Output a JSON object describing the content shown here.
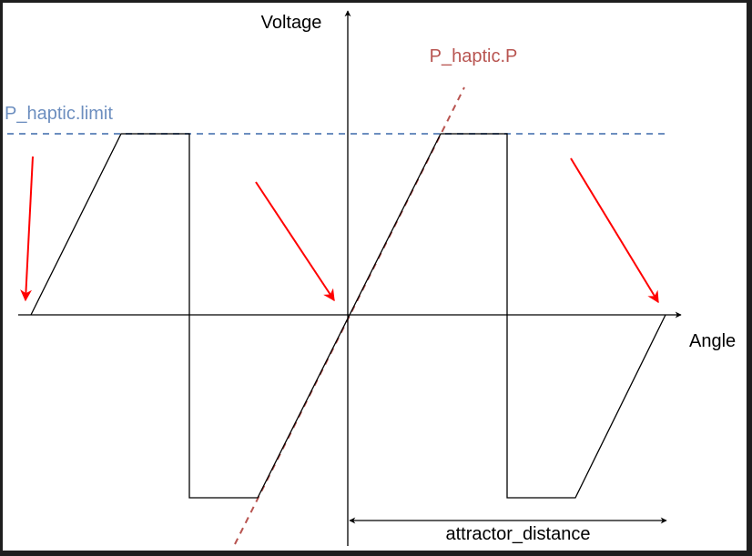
{
  "labels": {
    "y_axis": "Voltage",
    "x_axis": "Angle",
    "limit": "P_haptic.limit",
    "slope": "P_haptic.P",
    "distance": "attractor_distance"
  },
  "colors": {
    "background": "#ffffff",
    "frame": "#1e1e1e",
    "axis": "#000000",
    "signal": "#000000",
    "limit_line": "#6c8ebf",
    "slope_line": "#b85450",
    "arrow": "#ff0000"
  },
  "icons": {
    "annotation_arrows": [
      "red-arrow-icon",
      "red-arrow-icon",
      "red-arrow-icon"
    ]
  }
}
